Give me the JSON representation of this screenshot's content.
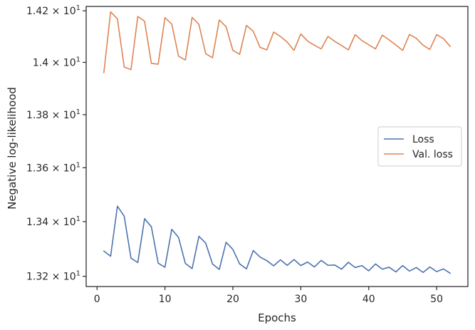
{
  "chart_data": {
    "type": "line",
    "title": "",
    "xlabel": "Epochs",
    "ylabel": "Negative log-likelihood",
    "yscale": "log",
    "xlim": [
      -1.6,
      54.6
    ],
    "ylim": [
      13.163,
      14.217
    ],
    "xticks": [
      0,
      10,
      20,
      30,
      40,
      50
    ],
    "xtick_labels": [
      "0",
      "10",
      "20",
      "30",
      "40",
      "50"
    ],
    "yticks": [
      13.2,
      13.4,
      13.6,
      13.8,
      14.0,
      14.2
    ],
    "ytick_labels": [
      {
        "mantissa": "1.32",
        "exp": "1"
      },
      {
        "mantissa": "1.34",
        "exp": "1"
      },
      {
        "mantissa": "1.36",
        "exp": "1"
      },
      {
        "mantissa": "1.38",
        "exp": "1"
      },
      {
        "mantissa": "1.4",
        "exp": "1"
      },
      {
        "mantissa": "1.42",
        "exp": "1"
      }
    ],
    "grid": false,
    "legend_position": "center-right",
    "series": [
      {
        "name": "Loss",
        "color": "#4c72b0",
        "x": [
          1,
          2,
          3,
          4,
          5,
          6,
          7,
          8,
          9,
          10,
          11,
          12,
          13,
          14,
          15,
          16,
          17,
          18,
          19,
          20,
          21,
          22,
          23,
          24,
          25,
          26,
          27,
          28,
          29,
          30,
          31,
          32,
          33,
          34,
          35,
          36,
          37,
          38,
          39,
          40,
          41,
          42,
          43,
          44,
          45,
          46,
          47,
          48,
          49,
          50,
          51,
          52
        ],
        "values": [
          13.292,
          13.273,
          13.457,
          13.42,
          13.266,
          13.25,
          13.411,
          13.381,
          13.248,
          13.233,
          13.372,
          13.342,
          13.247,
          13.228,
          13.346,
          13.321,
          13.245,
          13.225,
          13.324,
          13.298,
          13.245,
          13.227,
          13.294,
          13.27,
          13.257,
          13.238,
          13.26,
          13.24,
          13.261,
          13.239,
          13.252,
          13.234,
          13.258,
          13.24,
          13.241,
          13.226,
          13.251,
          13.232,
          13.239,
          13.22,
          13.245,
          13.226,
          13.233,
          13.216,
          13.239,
          13.219,
          13.232,
          13.214,
          13.234,
          13.217,
          13.227,
          13.211
        ]
      },
      {
        "name": "Val. loss",
        "color": "#dd8452",
        "x": [
          1,
          2,
          3,
          4,
          5,
          6,
          7,
          8,
          9,
          10,
          11,
          12,
          13,
          14,
          15,
          16,
          17,
          18,
          19,
          20,
          21,
          22,
          23,
          24,
          25,
          26,
          27,
          28,
          29,
          30,
          31,
          32,
          33,
          34,
          35,
          36,
          37,
          38,
          39,
          40,
          41,
          42,
          43,
          44,
          45,
          46,
          47,
          48,
          49,
          50,
          51,
          52
        ],
        "values": [
          13.96,
          14.196,
          14.168,
          13.982,
          13.972,
          14.178,
          14.159,
          13.996,
          13.993,
          14.173,
          14.148,
          14.024,
          14.009,
          14.174,
          14.147,
          14.033,
          14.018,
          14.164,
          14.138,
          14.046,
          14.031,
          14.143,
          14.12,
          14.058,
          14.048,
          14.117,
          14.1,
          14.078,
          14.046,
          14.11,
          14.082,
          14.066,
          14.052,
          14.1,
          14.081,
          14.065,
          14.048,
          14.107,
          14.084,
          14.068,
          14.052,
          14.105,
          14.087,
          14.067,
          14.046,
          14.108,
          14.093,
          14.066,
          14.05,
          14.107,
          14.092,
          14.061
        ]
      }
    ]
  }
}
